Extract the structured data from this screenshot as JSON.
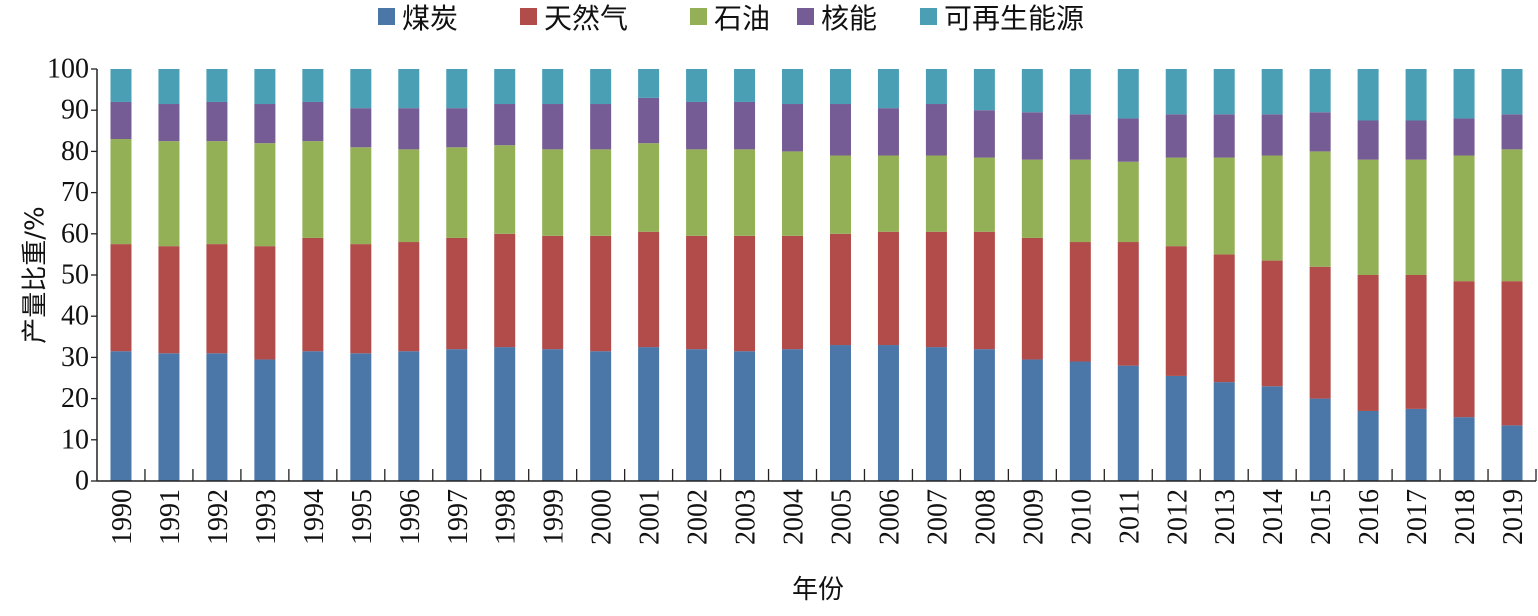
{
  "chart_data": {
    "type": "bar",
    "stacked": true,
    "title": "",
    "xlabel": "年份",
    "ylabel": "产量比重/%",
    "ylim": [
      0,
      100
    ],
    "yticks": [
      0,
      10,
      20,
      30,
      40,
      50,
      60,
      70,
      80,
      90,
      100
    ],
    "legend_position": "top",
    "grid": false,
    "categories": [
      "1990",
      "1991",
      "1992",
      "1993",
      "1994",
      "1995",
      "1996",
      "1997",
      "1998",
      "1999",
      "2000",
      "2001",
      "2002",
      "2003",
      "2004",
      "2005",
      "2006",
      "2007",
      "2008",
      "2009",
      "2010",
      "2011",
      "2012",
      "2013",
      "2014",
      "2015",
      "2016",
      "2017",
      "2018",
      "2019"
    ],
    "series": [
      {
        "name": "煤炭",
        "color": "#4a76a8",
        "values": [
          31.5,
          31,
          31,
          29.5,
          31.5,
          31,
          31.5,
          32,
          32.5,
          32,
          31.5,
          32.5,
          32,
          31.5,
          32,
          33,
          33,
          32.5,
          32,
          29.5,
          29,
          28,
          25.5,
          24,
          23,
          20,
          17,
          17.5,
          15.5,
          13.5
        ]
      },
      {
        "name": "天然气",
        "color": "#b24c4a",
        "values": [
          26,
          26,
          26.5,
          27.5,
          27.5,
          26.5,
          26.5,
          27,
          27.5,
          27.5,
          28,
          28,
          27.5,
          28,
          27.5,
          27,
          27.5,
          28,
          28.5,
          29.5,
          29,
          30,
          31.5,
          31,
          30.5,
          32,
          33,
          32.5,
          33,
          35
        ]
      },
      {
        "name": "石油",
        "color": "#93b056",
        "values": [
          25.5,
          25.5,
          25,
          25,
          23.5,
          23.5,
          22.5,
          22,
          21.5,
          21,
          21,
          21.5,
          21,
          21,
          20.5,
          19,
          18.5,
          18.5,
          18,
          19,
          20,
          19.5,
          21.5,
          23.5,
          25.5,
          28,
          28,
          28,
          30.5,
          32
        ]
      },
      {
        "name": "核能",
        "color": "#765c94",
        "values": [
          9,
          9,
          9.5,
          9.5,
          9.5,
          9.5,
          10,
          9.5,
          10,
          11,
          11,
          11,
          11.5,
          11.5,
          11.5,
          12.5,
          11.5,
          12.5,
          11.5,
          11.5,
          11,
          10.5,
          10.5,
          10.5,
          10,
          9.5,
          9.5,
          9.5,
          9,
          8.5
        ]
      },
      {
        "name": "可再生能源",
        "color": "#4a9fb5",
        "values": [
          8,
          8.5,
          8,
          8.5,
          8,
          9.5,
          9.5,
          9.5,
          8.5,
          8.5,
          8.5,
          7,
          8,
          8,
          8.5,
          8.5,
          9.5,
          8.5,
          10,
          10.5,
          11,
          12,
          11,
          11,
          11,
          10.5,
          12.5,
          12.5,
          12,
          11
        ]
      }
    ]
  }
}
